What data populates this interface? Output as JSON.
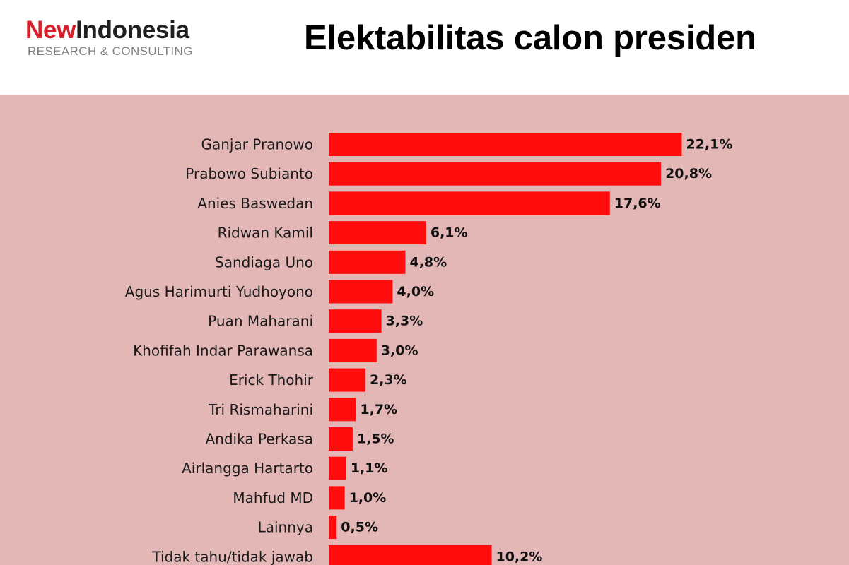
{
  "header": {
    "logo_new": "New",
    "logo_indonesia": "Indonesia",
    "logo_subtitle": "RESEARCH & CONSULTING",
    "title": "Elektabilitas calon presiden"
  },
  "colors": {
    "bar": "#ff0d0d",
    "panel_background": "#e4b7b7",
    "logo_accent": "#d7202a"
  },
  "chart_data": {
    "type": "bar",
    "orientation": "horizontal",
    "title": "Elektabilitas calon presiden",
    "categories": [
      "Ganjar Pranowo",
      "Prabowo Subianto",
      "Anies Baswedan",
      "Ridwan Kamil",
      "Sandiaga Uno",
      "Agus Harimurti Yudhoyono",
      "Puan Maharani",
      "Khofifah Indar Parawansa",
      "Erick Thohir",
      "Tri Rismaharini",
      "Andika Perkasa",
      "Airlangga Hartarto",
      "Mahfud MD",
      "Lainnya",
      "Tidak tahu/tidak jawab"
    ],
    "values": [
      22.1,
      20.8,
      17.6,
      6.1,
      4.8,
      4.0,
      3.3,
      3.0,
      2.3,
      1.7,
      1.5,
      1.1,
      1.0,
      0.5,
      10.2
    ],
    "value_labels": [
      "22,1%",
      "20,8%",
      "17,6%",
      "6,1%",
      "4,8%",
      "4,0%",
      "3,3%",
      "3,0%",
      "2,3%",
      "1,7%",
      "1,5%",
      "1,1%",
      "1,0%",
      "0,5%",
      "10,2%"
    ],
    "xlabel": "",
    "ylabel": "",
    "grid": false,
    "legend": "none"
  }
}
